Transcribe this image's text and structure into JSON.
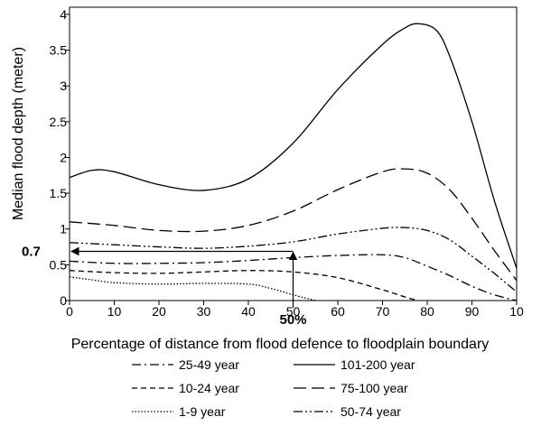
{
  "chart_data": {
    "type": "line",
    "title": "",
    "xlabel": "Percentage of distance from flood defence to floodplain boundary",
    "ylabel": "Median flood depth (meter)",
    "xlim": [
      0,
      100
    ],
    "ylim": [
      0,
      4.1
    ],
    "x_ticks": [
      "0",
      "10",
      "20",
      "30",
      "40",
      "50",
      "60",
      "70",
      "80",
      "90",
      "10"
    ],
    "y_ticks": [
      "0",
      "0.5",
      "1",
      "1.5",
      "2",
      "2.5",
      "3",
      "3.5",
      "4"
    ],
    "grid": false,
    "legend_position": "bottom",
    "series": [
      {
        "name": "101-200 year",
        "dash": "solid",
        "x": [
          0,
          5,
          10,
          20,
          30,
          40,
          50,
          60,
          70,
          75,
          78,
          82,
          85,
          90,
          95,
          100
        ],
        "y": [
          1.72,
          1.82,
          1.8,
          1.62,
          1.54,
          1.7,
          2.2,
          2.95,
          3.58,
          3.81,
          3.87,
          3.78,
          3.42,
          2.5,
          1.4,
          0.45
        ]
      },
      {
        "name": "75-100 year",
        "dash": "long-dash",
        "x": [
          0,
          10,
          20,
          30,
          40,
          50,
          60,
          70,
          75,
          80,
          85,
          90,
          95,
          100
        ],
        "y": [
          1.1,
          1.05,
          0.98,
          0.97,
          1.05,
          1.25,
          1.55,
          1.8,
          1.84,
          1.78,
          1.55,
          1.15,
          0.7,
          0.28
        ]
      },
      {
        "name": "50-74 year",
        "dash": "dash-dot-dot",
        "x": [
          0,
          10,
          20,
          30,
          40,
          50,
          60,
          70,
          75,
          80,
          85,
          90,
          95,
          100
        ],
        "y": [
          0.81,
          0.78,
          0.75,
          0.73,
          0.76,
          0.82,
          0.93,
          1.01,
          1.02,
          0.98,
          0.85,
          0.62,
          0.38,
          0.12
        ]
      },
      {
        "name": "25-49 year",
        "dash": "dash-dot",
        "x": [
          0,
          10,
          20,
          30,
          40,
          50,
          60,
          70,
          75,
          80,
          85,
          90,
          95,
          100
        ],
        "y": [
          0.55,
          0.52,
          0.52,
          0.53,
          0.56,
          0.6,
          0.63,
          0.64,
          0.6,
          0.48,
          0.35,
          0.2,
          0.08,
          0.0
        ]
      },
      {
        "name": "10-24 year",
        "dash": "short-dash",
        "x": [
          0,
          10,
          20,
          30,
          40,
          50,
          60,
          70,
          75,
          78
        ],
        "y": [
          0.42,
          0.39,
          0.38,
          0.4,
          0.42,
          0.4,
          0.32,
          0.15,
          0.05,
          0.0
        ]
      },
      {
        "name": "1-9 year",
        "dash": "dotted",
        "x": [
          0,
          5,
          10,
          20,
          30,
          40,
          45,
          50,
          55
        ],
        "y": [
          0.33,
          0.29,
          0.25,
          0.23,
          0.24,
          0.23,
          0.17,
          0.08,
          0.0
        ]
      }
    ],
    "annotations": {
      "y_marker": "0.7",
      "x_marker": "50%",
      "y_value": 0.7,
      "x_value": 50
    },
    "legend": [
      {
        "label": "25-49 year",
        "dash": "dash-dot"
      },
      {
        "label": "101-200 year",
        "dash": "solid"
      },
      {
        "label": "10-24 year",
        "dash": "short-dash"
      },
      {
        "label": "75-100 year",
        "dash": "long-dash"
      },
      {
        "label": "1-9 year",
        "dash": "dotted"
      },
      {
        "label": "50-74 year",
        "dash": "dash-dot-dot"
      }
    ]
  }
}
